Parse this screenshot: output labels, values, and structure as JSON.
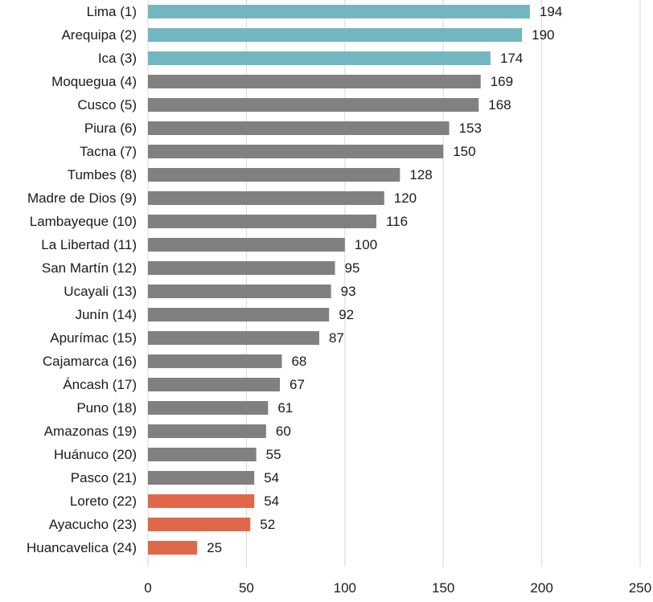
{
  "chart_data": {
    "type": "bar",
    "orientation": "horizontal",
    "title": "",
    "xlabel": "",
    "ylabel": "",
    "xlim": [
      0,
      250
    ],
    "xticks": [
      0,
      50,
      100,
      150,
      200,
      250
    ],
    "grid": "vertical",
    "legend": "none",
    "categories": [
      "Lima (1)",
      "Arequipa (2)",
      "Ica (3)",
      "Moquegua (4)",
      "Cusco (5)",
      "Piura (6)",
      "Tacna (7)",
      "Tumbes (8)",
      "Madre de Dios (9)",
      "Lambayeque (10)",
      "La Libertad (11)",
      "San Martín (12)",
      "Ucayali (13)",
      "Junín (14)",
      "Apurímac (15)",
      "Cajamarca (16)",
      "Áncash (17)",
      "Puno (18)",
      "Amazonas (19)",
      "Huánuco (20)",
      "Pasco (21)",
      "Loreto (22)",
      "Ayacucho (23)",
      "Huancavelica (24)"
    ],
    "values": [
      194,
      190,
      174,
      169,
      168,
      153,
      150,
      128,
      120,
      116,
      100,
      95,
      93,
      92,
      87,
      68,
      67,
      61,
      60,
      55,
      54,
      54,
      52,
      25
    ],
    "bar_groups": [
      "top",
      "top",
      "top",
      "mid",
      "mid",
      "mid",
      "mid",
      "mid",
      "mid",
      "mid",
      "mid",
      "mid",
      "mid",
      "mid",
      "mid",
      "mid",
      "mid",
      "mid",
      "mid",
      "mid",
      "mid",
      "bottom",
      "bottom",
      "bottom"
    ],
    "colors": {
      "top": "#72b6c0",
      "mid": "#808080",
      "bottom": "#e0684a",
      "grid": "#d9d9d9"
    }
  }
}
